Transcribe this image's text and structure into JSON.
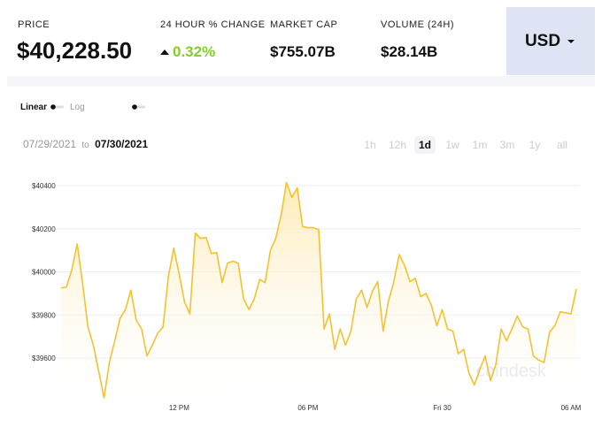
{
  "header": {
    "price": {
      "label": "PRICE",
      "value": "$40,228.50"
    },
    "change": {
      "label": "24 HOUR % CHANGE",
      "value": "0.32%"
    },
    "market_cap": {
      "label": "MARKET CAP",
      "value": "$755.07B"
    },
    "volume": {
      "label": "VOLUME (24H)",
      "value": "$28.14B"
    },
    "currency": "USD"
  },
  "scale_toggle": {
    "linear": "Linear",
    "log": "Log"
  },
  "date_range": {
    "from": "07/29/2021",
    "to_word": "to",
    "to": "07/30/2021"
  },
  "timeframes": {
    "options": [
      "1h",
      "12h",
      "1d",
      "1w",
      "1m",
      "3m",
      "1y",
      "all"
    ],
    "selected": "1d"
  },
  "watermark": "coindesk",
  "chart_data": {
    "type": "area",
    "color": "#f2c230",
    "grid": true,
    "ylim": [
      39400,
      40460
    ],
    "yticks": [
      {
        "value": 39600,
        "label": "$39600"
      },
      {
        "value": 39800,
        "label": "$39800"
      },
      {
        "value": 40000,
        "label": "$40000"
      },
      {
        "value": 40200,
        "label": "$40200"
      },
      {
        "value": 40400,
        "label": "$40400"
      }
    ],
    "categories": [
      null,
      null,
      null,
      null,
      null,
      null,
      null,
      null,
      null,
      null,
      null,
      null,
      null,
      null,
      null,
      null,
      null,
      null,
      null,
      null,
      null,
      null,
      "12 PM",
      null,
      null,
      null,
      null,
      null,
      null,
      null,
      null,
      null,
      null,
      null,
      null,
      null,
      null,
      null,
      null,
      null,
      null,
      null,
      null,
      null,
      null,
      null,
      "06 PM",
      null,
      null,
      null,
      null,
      null,
      null,
      null,
      null,
      null,
      null,
      null,
      null,
      null,
      null,
      null,
      null,
      null,
      null,
      null,
      null,
      null,
      null,
      null,
      null,
      "Fri 30",
      null,
      null,
      null,
      null,
      null,
      null,
      null,
      null,
      null,
      null,
      null,
      null,
      null,
      null,
      null,
      null,
      null,
      null,
      null,
      null,
      null,
      null,
      null,
      "06 AM",
      null
    ],
    "values": [
      39925,
      39930,
      40010,
      40130,
      39950,
      39745,
      39660,
      39540,
      39415,
      39580,
      39680,
      39785,
      39825,
      39915,
      39775,
      39735,
      39610,
      39660,
      39715,
      39745,
      39980,
      40110,
      39990,
      39860,
      39805,
      40180,
      40155,
      40160,
      40085,
      40090,
      39950,
      40040,
      40050,
      40040,
      39875,
      39825,
      39875,
      39965,
      39950,
      40100,
      40155,
      40265,
      40415,
      40345,
      40390,
      40210,
      40205,
      40205,
      40195,
      39735,
      39805,
      39640,
      39735,
      39660,
      39725,
      39875,
      39915,
      39835,
      39910,
      39955,
      39725,
      39865,
      39955,
      40080,
      40030,
      39955,
      39970,
      39885,
      39900,
      39845,
      39750,
      39825,
      39735,
      39725,
      39620,
      39640,
      39530,
      39475,
      39545,
      39610,
      39495,
      39570,
      39735,
      39680,
      39735,
      39795,
      39745,
      39735,
      39610,
      39590,
      39580,
      39720,
      39750,
      39815,
      39810,
      39805,
      39920
    ]
  }
}
